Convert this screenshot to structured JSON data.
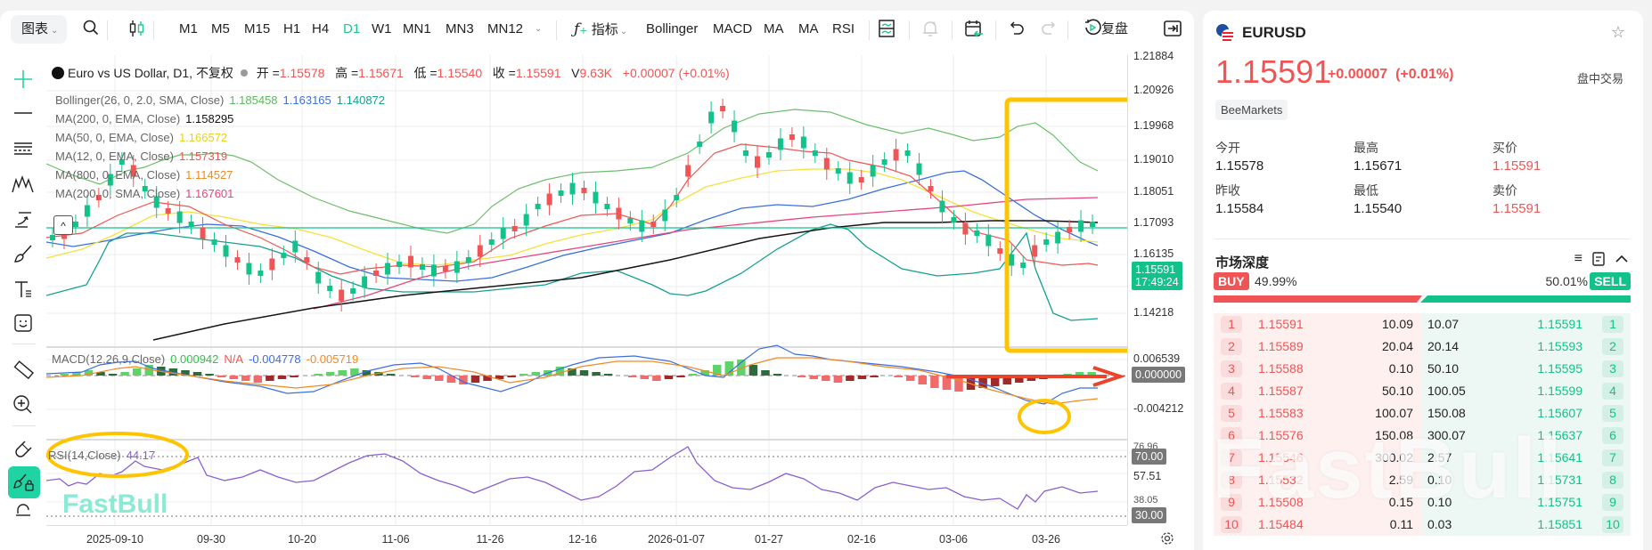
{
  "toolbar": {
    "chart_menu": "图表",
    "timeframes": [
      "M1",
      "M5",
      "M15",
      "H1",
      "H4",
      "D1",
      "W1",
      "MN1",
      "MN3",
      "MN12"
    ],
    "active_timeframe": "D1",
    "indicators_label": "指标",
    "indicator_shortcuts": [
      "Bollinger",
      "MACD",
      "MA",
      "MA",
      "RSI"
    ],
    "replay_label": "复盘",
    "icons": [
      "search-icon",
      "candlestick-icon",
      "layout-icon",
      "alert-add-icon",
      "calendar-icon",
      "undo-icon",
      "redo-icon",
      "replay-icon",
      "collapse-panel-icon"
    ]
  },
  "left_tools": [
    "crosshair-icon",
    "line-icon",
    "fib-icon",
    "pattern-icon",
    "projection-icon",
    "brush-icon",
    "text-icon",
    "emoji-icon",
    "ruler-icon",
    "zoom-in-icon",
    "magnet-icon",
    "lock-drawing-icon",
    "lock-icon"
  ],
  "legend": {
    "title": "Euro vs US Dollar, D1, 不复权",
    "open_label": "开 =",
    "open": "1.15578",
    "high_label": "高 =",
    "high": "1.15671",
    "low_label": "低 =",
    "low": "1.15540",
    "close_label": "收 =",
    "close": "1.15591",
    "vol_label": "V",
    "vol": "9.63K",
    "change": "+0.00007 (+0.01%)",
    "indicators": [
      {
        "name": "Bollinger(26, 0, 2.0, SMA, Close)",
        "values": [
          "1.185458",
          "1.163165",
          "1.140872"
        ],
        "colors": [
          "#5cb85c",
          "#3b6fe0",
          "#15a090"
        ]
      },
      {
        "name": "MA(200, 0, EMA, Close)",
        "values": [
          "1.158295"
        ],
        "colors": [
          "#111111"
        ]
      },
      {
        "name": "MA(50, 0, EMA, Close)",
        "values": [
          "1.166572"
        ],
        "colors": [
          "#f5e13a"
        ]
      },
      {
        "name": "MA(12, 0, EMA, Close)",
        "values": [
          "1.157319"
        ],
        "colors": [
          "#f05454"
        ]
      },
      {
        "name": "MA(800, 0, EMA, Close)",
        "values": [
          "1.114527"
        ],
        "colors": [
          "#f08a24"
        ]
      },
      {
        "name": "MA(200, 0, SMA, Close)",
        "values": [
          "1.167601"
        ],
        "colors": [
          "#e8457a"
        ]
      }
    ],
    "macd": {
      "name": "MACD(12,26,9,Close)",
      "values": [
        "0.000942",
        "N/A",
        "-0.004778",
        "-0.005719"
      ],
      "colors": [
        "#2ec24a",
        "#f05454",
        "#3b6fe0",
        "#f08a24"
      ]
    },
    "rsi": {
      "name": "RSI(14,Close)",
      "value": "44.17"
    }
  },
  "price_axis": {
    "labels": [
      "1.21884",
      "1.20926",
      "1.19968",
      "1.19010",
      "1.18051",
      "1.17093",
      "1.16135",
      "1.14218"
    ],
    "current_price": "1.15591",
    "countdown": "17:49:24",
    "macd_labels": [
      "0.006539",
      "0.000000",
      "-0.004212"
    ],
    "rsi_labels": [
      "76.96",
      "70.00",
      "57.51",
      "38.05",
      "30.00"
    ]
  },
  "date_axis": [
    "2025-09-10",
    "09-30",
    "10-20",
    "11-06",
    "11-26",
    "12-16",
    "2026-01-07",
    "01-27",
    "02-16",
    "03-06",
    "03-26"
  ],
  "watermark": "FastBull",
  "quote": {
    "symbol": "EURUSD",
    "price": "1.15591",
    "change": "+0.00007",
    "change_pct": "(+0.01%)",
    "session": "盘中交易",
    "broker": "BeeMarkets",
    "stats": [
      {
        "label": "今开",
        "value": "1.15578",
        "color": "normal"
      },
      {
        "label": "最高",
        "value": "1.15671",
        "color": "normal"
      },
      {
        "label": "买价",
        "value": "1.15591",
        "color": "red"
      },
      {
        "label": "昨收",
        "value": "1.15584",
        "color": "normal"
      },
      {
        "label": "最低",
        "value": "1.15540",
        "color": "normal"
      },
      {
        "label": "卖价",
        "value": "1.15591",
        "color": "red"
      }
    ]
  },
  "depth": {
    "title": "市场深度",
    "buy_label": "BUY",
    "buy_pct": "49.99%",
    "sell_label": "SELL",
    "sell_pct": "50.01%",
    "rows": [
      {
        "idx": "1",
        "bid": "1.15591",
        "bid_qty": "10.09",
        "ask_qty": "10.07",
        "ask": "1.15591"
      },
      {
        "idx": "2",
        "bid": "1.15589",
        "bid_qty": "20.04",
        "ask_qty": "20.14",
        "ask": "1.15593"
      },
      {
        "idx": "3",
        "bid": "1.15588",
        "bid_qty": "0.10",
        "ask_qty": "50.10",
        "ask": "1.15595"
      },
      {
        "idx": "4",
        "bid": "1.15587",
        "bid_qty": "50.10",
        "ask_qty": "100.05",
        "ask": "1.15599"
      },
      {
        "idx": "5",
        "bid": "1.15583",
        "bid_qty": "100.07",
        "ask_qty": "150.08",
        "ask": "1.15607"
      },
      {
        "idx": "6",
        "bid": "1.15576",
        "bid_qty": "150.08",
        "ask_qty": "300.07",
        "ask": "1.15637"
      },
      {
        "idx": "7",
        "bid": "1.15546",
        "bid_qty": "300.02",
        "ask_qty": "2.57",
        "ask": "1.15641"
      },
      {
        "idx": "8",
        "bid": "1.15532",
        "bid_qty": "2.59",
        "ask_qty": "0.10",
        "ask": "1.15731"
      },
      {
        "idx": "9",
        "bid": "1.15508",
        "bid_qty": "0.15",
        "ask_qty": "0.10",
        "ask": "1.15751"
      },
      {
        "idx": "10",
        "bid": "1.15484",
        "bid_qty": "0.11",
        "ask_qty": "0.03",
        "ask": "1.15851"
      }
    ]
  },
  "colors": {
    "up": "#13c28a",
    "down": "#f05454",
    "accent": "#1fc78f",
    "annotation": "#ffc400",
    "arrow": "#e8452c"
  }
}
